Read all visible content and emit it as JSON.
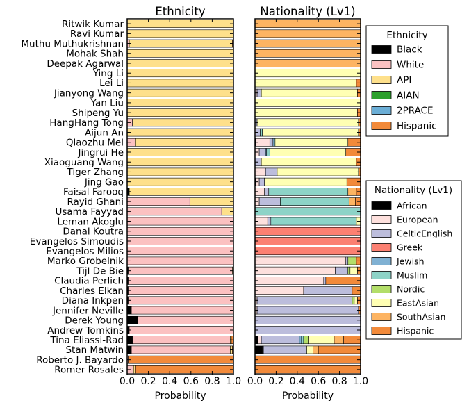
{
  "chart_data": {
    "type": "bar",
    "orientation": "horizontal",
    "stacked": true,
    "categories": [
      "Ritwik Kumar",
      "Ravi Kumar",
      "Muthu Muthukrishnan",
      "Mohak Shah",
      "Deepak Agarwal",
      "Ying Li",
      "Lei Li",
      "Jianyong Wang",
      "Yan Liu",
      "Shipeng Yu",
      "HangHang Tong",
      "Aijun An",
      "Qiaozhu Mei",
      "Jingrui He",
      "Xiaoguang Wang",
      "Tiger Zhang",
      "Jing Gao",
      "Faisal Farooq",
      "Rayid Ghani",
      "Usama Fayyad",
      "Leman Akoglu",
      "Danai Koutra",
      "Evangelos Simoudis",
      "Evangelos Milios",
      "Marko Grobelnik",
      "Tijl De Bie",
      "Claudia Perlich",
      "Charles Elkan",
      "Diana Inkpen",
      "Jennifer Neville",
      "Derek Young",
      "Andrew Tomkins",
      "Tina Eliassi-Rad",
      "Stan Matwin",
      "Roberto J. Bayardo",
      "Romer Rosales"
    ],
    "panels": [
      {
        "title": "Ethnicity",
        "xlabel": "Probability",
        "xlim": [
          0,
          1
        ],
        "xticks": [
          "0.0",
          "0.2",
          "0.4",
          "0.6",
          "0.8",
          "1.0"
        ],
        "legend_title": "Ethnicity",
        "legend_position": "upper right, outside",
        "series": [
          {
            "name": "Black",
            "color": "#000000"
          },
          {
            "name": "White",
            "color": "#fbc1c1"
          },
          {
            "name": "API",
            "color": "#fee08b"
          },
          {
            "name": "AIAN",
            "color": "#2ca02c"
          },
          {
            "name": "2PRACE",
            "color": "#6baed6"
          },
          {
            "name": "Hispanic",
            "color": "#f28a3a"
          }
        ],
        "values": [
          [
            0,
            0,
            1,
            0,
            0,
            0
          ],
          [
            0,
            0,
            1,
            0,
            0,
            0
          ],
          [
            0,
            0.02,
            0.97,
            0,
            0,
            0.01
          ],
          [
            0,
            0,
            1,
            0,
            0,
            0
          ],
          [
            0,
            0,
            1,
            0,
            0,
            0
          ],
          [
            0,
            0,
            1,
            0,
            0,
            0
          ],
          [
            0,
            0,
            1,
            0,
            0,
            0
          ],
          [
            0,
            0,
            1,
            0,
            0,
            0
          ],
          [
            0,
            0,
            1,
            0,
            0,
            0
          ],
          [
            0,
            0,
            1,
            0,
            0,
            0
          ],
          [
            0,
            0.05,
            0.95,
            0,
            0,
            0
          ],
          [
            0,
            0,
            1,
            0,
            0,
            0
          ],
          [
            0,
            0.08,
            0.92,
            0,
            0,
            0
          ],
          [
            0,
            0,
            1,
            0,
            0,
            0
          ],
          [
            0,
            0,
            1,
            0,
            0,
            0
          ],
          [
            0,
            0,
            1,
            0,
            0,
            0
          ],
          [
            0,
            0,
            1,
            0,
            0,
            0
          ],
          [
            0.02,
            0,
            0.98,
            0,
            0,
            0
          ],
          [
            0,
            0.59,
            0.41,
            0,
            0,
            0
          ],
          [
            0,
            0.89,
            0.11,
            0,
            0,
            0
          ],
          [
            0,
            1,
            0,
            0,
            0,
            0
          ],
          [
            0,
            1,
            0,
            0,
            0,
            0
          ],
          [
            0,
            1,
            0,
            0,
            0,
            0
          ],
          [
            0,
            1,
            0,
            0,
            0,
            0
          ],
          [
            0,
            1,
            0,
            0,
            0,
            0
          ],
          [
            0.01,
            0.98,
            0.01,
            0,
            0,
            0
          ],
          [
            0.01,
            0.99,
            0,
            0,
            0,
            0
          ],
          [
            0.01,
            0.99,
            0,
            0,
            0,
            0
          ],
          [
            0.01,
            0.99,
            0,
            0,
            0,
            0
          ],
          [
            0.04,
            0.96,
            0,
            0,
            0,
            0
          ],
          [
            0.1,
            0.9,
            0,
            0,
            0,
            0
          ],
          [
            0.02,
            0.98,
            0,
            0,
            0,
            0
          ],
          [
            0.05,
            0.92,
            0.01,
            0,
            0,
            0.02
          ],
          [
            0.04,
            0.93,
            0.02,
            0,
            0,
            0.01
          ],
          [
            0,
            0.01,
            0,
            0,
            0,
            0.99
          ],
          [
            0,
            0.06,
            0.02,
            0,
            0,
            0.92
          ]
        ]
      },
      {
        "title": "Nationality (Lv1)",
        "xlabel": "Probability",
        "xlim": [
          0,
          1
        ],
        "xticks": [
          "0.0",
          "0.2",
          "0.4",
          "0.6",
          "0.8",
          "1.0"
        ],
        "legend_title": "Nationality (Lv1)",
        "legend_position": "lower right, outside",
        "series": [
          {
            "name": "African",
            "color": "#000000"
          },
          {
            "name": "European",
            "color": "#fde0dd"
          },
          {
            "name": "CelticEnglish",
            "color": "#bcbddc"
          },
          {
            "name": "Greek",
            "color": "#fb8072"
          },
          {
            "name": "Jewish",
            "color": "#80b1d3"
          },
          {
            "name": "Muslim",
            "color": "#8dd3c7"
          },
          {
            "name": "Nordic",
            "color": "#b3de69"
          },
          {
            "name": "EastAsian",
            "color": "#ffffb3"
          },
          {
            "name": "SouthAsian",
            "color": "#fdb462"
          },
          {
            "name": "Hispanic",
            "color": "#f28a3a"
          }
        ],
        "values": [
          [
            0,
            0,
            0,
            0,
            0,
            0,
            0,
            0,
            1,
            0
          ],
          [
            0,
            0,
            0,
            0,
            0,
            0,
            0,
            0,
            1,
            0
          ],
          [
            0,
            0,
            0,
            0,
            0,
            0,
            0,
            0,
            1,
            0
          ],
          [
            0,
            0,
            0,
            0,
            0,
            0,
            0,
            0,
            1,
            0
          ],
          [
            0,
            0,
            0,
            0,
            0,
            0,
            0,
            0,
            1,
            0
          ],
          [
            0,
            0,
            0,
            0,
            0,
            0,
            0,
            1,
            0,
            0
          ],
          [
            0,
            0,
            0,
            0,
            0,
            0,
            0,
            0.96,
            0,
            0.04
          ],
          [
            0,
            0.02,
            0.04,
            0,
            0,
            0,
            0,
            0.91,
            0,
            0.03
          ],
          [
            0,
            0,
            0,
            0,
            0,
            0,
            0,
            1,
            0,
            0
          ],
          [
            0,
            0,
            0,
            0,
            0,
            0,
            0,
            0.97,
            0,
            0.03
          ],
          [
            0,
            0,
            0.02,
            0,
            0,
            0,
            0,
            0.96,
            0,
            0.02
          ],
          [
            0,
            0.01,
            0.04,
            0,
            0,
            0.02,
            0,
            0.91,
            0,
            0.02
          ],
          [
            0.01,
            0.13,
            0.03,
            0,
            0.01,
            0.01,
            0,
            0.69,
            0,
            0.12
          ],
          [
            0,
            0.04,
            0.06,
            0,
            0.01,
            0.03,
            0,
            0.72,
            0,
            0.14
          ],
          [
            0,
            0,
            0.06,
            0,
            0,
            0,
            0,
            0.9,
            0,
            0.04
          ],
          [
            0,
            0.1,
            0.11,
            0,
            0,
            0,
            0,
            0.77,
            0,
            0.02
          ],
          [
            0.01,
            0.03,
            0.05,
            0,
            0,
            0,
            0,
            0.78,
            0,
            0.13
          ],
          [
            0,
            0.09,
            0.04,
            0,
            0,
            0.75,
            0,
            0,
            0.08,
            0.04
          ],
          [
            0,
            0.04,
            0.2,
            0,
            0,
            0.65,
            0,
            0,
            0.06,
            0.05
          ],
          [
            0,
            0,
            0,
            0,
            0,
            1,
            0,
            0,
            0,
            0
          ],
          [
            0,
            0.12,
            0.03,
            0,
            0,
            0.81,
            0,
            0.04,
            0,
            0
          ],
          [
            0,
            0,
            0,
            1,
            0,
            0,
            0,
            0,
            0,
            0
          ],
          [
            0,
            0,
            0,
            1,
            0,
            0,
            0,
            0,
            0,
            0
          ],
          [
            0,
            0,
            0,
            1,
            0,
            0,
            0,
            0,
            0,
            0
          ],
          [
            0,
            0.86,
            0.02,
            0,
            0,
            0,
            0.08,
            0,
            0,
            0.04
          ],
          [
            0,
            0.76,
            0.12,
            0,
            0,
            0,
            0.02,
            0.07,
            0,
            0.03
          ],
          [
            0,
            0.65,
            0.02,
            0,
            0,
            0,
            0,
            0,
            0,
            0.33
          ],
          [
            0,
            0.46,
            0.46,
            0,
            0,
            0,
            0,
            0,
            0,
            0.08
          ],
          [
            0,
            0.02,
            0.9,
            0,
            0,
            0,
            0.02,
            0.03,
            0,
            0.03
          ],
          [
            0,
            0.02,
            0.96,
            0,
            0,
            0,
            0,
            0,
            0,
            0.02
          ],
          [
            0,
            0,
            1,
            0,
            0,
            0,
            0,
            0,
            0,
            0
          ],
          [
            0,
            0,
            1,
            0,
            0,
            0,
            0,
            0,
            0,
            0
          ],
          [
            0.03,
            0.03,
            0.36,
            0,
            0.02,
            0.02,
            0.05,
            0.24,
            0.09,
            0.16
          ],
          [
            0.07,
            0.01,
            0.41,
            0,
            0,
            0,
            0,
            0.06,
            0.05,
            0.4
          ],
          [
            0,
            0,
            0,
            0,
            0,
            0,
            0,
            0,
            0,
            1
          ],
          [
            0,
            0,
            0,
            0,
            0,
            0,
            0,
            0,
            0,
            1
          ]
        ]
      }
    ]
  }
}
